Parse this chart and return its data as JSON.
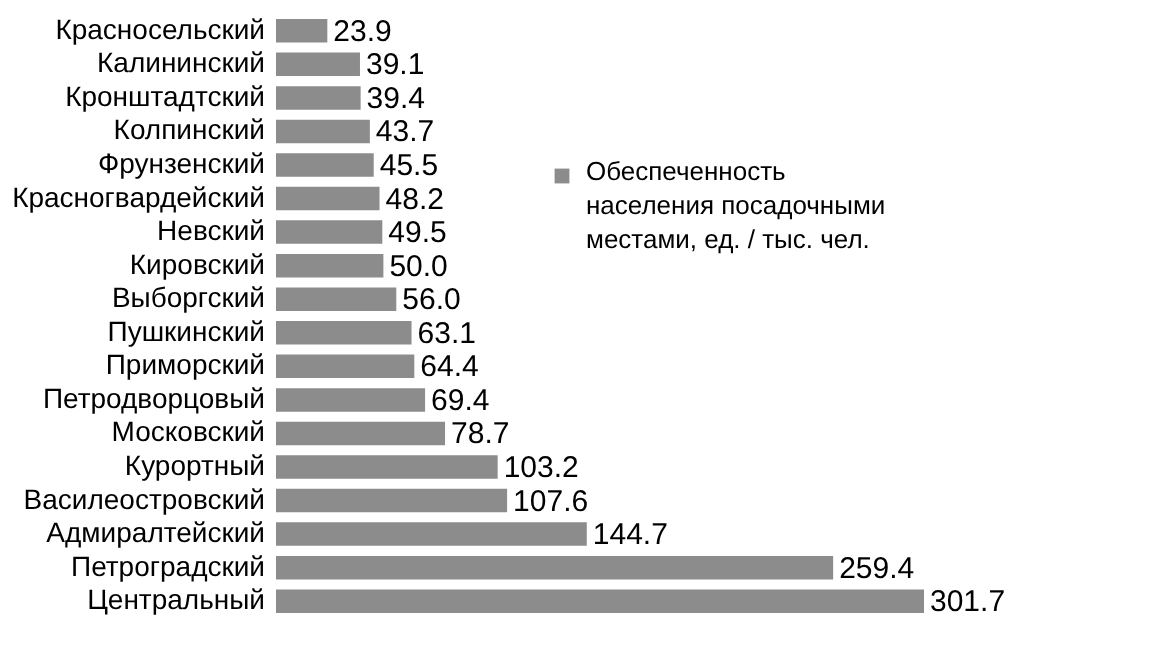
{
  "chart_data": {
    "type": "bar",
    "orientation": "horizontal",
    "categories": [
      "Красносельский",
      "Калининский",
      "Кронштадтский",
      "Колпинский",
      "Фрунзенский",
      "Красногвардейский",
      "Невский",
      "Кировский",
      "Выборгский",
      "Пушкинский",
      "Приморский",
      "Петродворцовый",
      "Московский",
      "Курортный",
      "Василеостровский",
      "Адмиралтейский",
      "Петроградский",
      "Центральный"
    ],
    "series": [
      {
        "name": "Обеспеченность населения посадочными местами, ед. / тыс. чел.",
        "color": "#8c8c8c",
        "values": [
          23.9,
          39.1,
          39.4,
          43.7,
          45.5,
          48.2,
          49.5,
          50.0,
          56.0,
          63.1,
          64.4,
          69.4,
          78.7,
          103.2,
          107.6,
          144.7,
          259.4,
          301.7
        ],
        "value_labels": [
          "23.9",
          "39.1",
          "39.4",
          "43.7",
          "45.5",
          "48.2",
          "49.5",
          "50.0",
          "56.0",
          "63.1",
          "64.4",
          "69.4",
          "78.7",
          "103.2",
          "107.6",
          "144.7",
          "259.4",
          "301.7"
        ]
      }
    ],
    "legend": "right"
  }
}
